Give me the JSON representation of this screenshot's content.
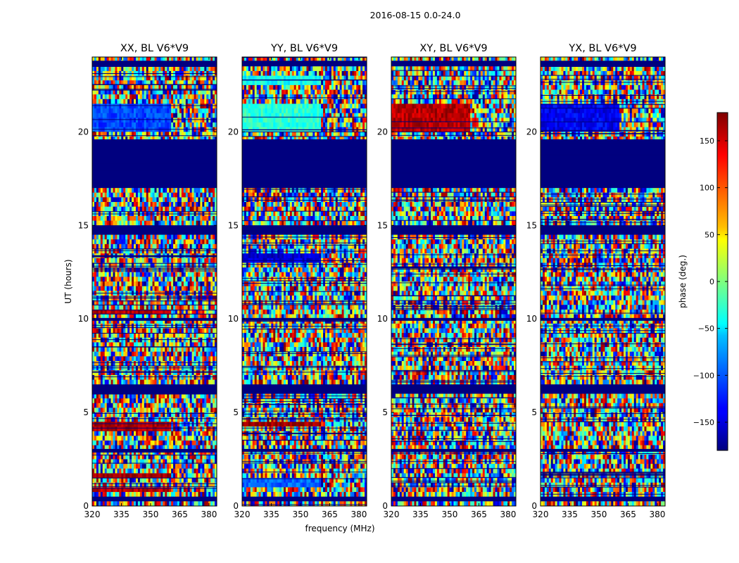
{
  "figure": {
    "suptitle": "2016-08-15 0.0-24.0",
    "xlabel": "frequency (MHz)",
    "ylabel": "UT (hours)"
  },
  "chart_data": {
    "type": "heatmap",
    "colormap": "jet",
    "x": {
      "label": "frequency (MHz)",
      "range": [
        320,
        384
      ],
      "ticks": [
        320,
        335,
        350,
        365,
        380
      ],
      "tick_labels": [
        "320",
        "335",
        "350",
        "365",
        "380"
      ]
    },
    "y": {
      "label": "UT (hours)",
      "range": [
        0,
        24
      ],
      "ticks": [
        0,
        5,
        10,
        15,
        20
      ],
      "tick_labels": [
        "0",
        "5",
        "10",
        "15",
        "20"
      ]
    },
    "panels": [
      {
        "title": "XX, BL V6*V9",
        "stable_phase": [
          {
            "t": [
              20.0,
              21.5
            ],
            "phase": -110
          },
          {
            "t": [
              14.9,
              15.1
            ],
            "phase": 170
          },
          {
            "t": [
              10.2,
              10.5
            ],
            "phase": 160
          },
          {
            "t": [
              4.1,
              4.4
            ],
            "phase": 165
          },
          {
            "t": [
              1.5,
              1.8
            ],
            "phase": 170
          },
          {
            "t": [
              0.7,
              1.0
            ],
            "phase": 160
          }
        ]
      },
      {
        "title": "YY, BL V6*V9",
        "stable_phase": [
          {
            "t": [
              20.0,
              21.5
            ],
            "phase": -30
          },
          {
            "t": [
              22.5,
              22.9
            ],
            "phase": -40
          },
          {
            "t": [
              13.1,
              13.4
            ],
            "phase": -150
          },
          {
            "t": [
              4.2,
              4.5
            ],
            "phase": 170
          },
          {
            "t": [
              1.0,
              1.5
            ],
            "phase": -100
          }
        ]
      },
      {
        "title": "XY, BL V6*V9",
        "stable_phase": [
          {
            "t": [
              20.0,
              21.5
            ],
            "phase": 160
          }
        ]
      },
      {
        "title": "YX, BL V6*V9",
        "stable_phase": [
          {
            "t": [
              20.0,
              21.5
            ],
            "phase": -140
          }
        ]
      }
    ],
    "blank_bands_hours": [
      [
        17.0,
        19.6
      ],
      [
        14.5,
        15.0
      ],
      [
        9.9,
        10.05
      ],
      [
        6.0,
        6.4
      ],
      [
        2.9,
        3.05
      ],
      [
        0.3,
        0.4
      ],
      [
        23.6,
        23.8
      ]
    ],
    "colorbar": {
      "label": "phase (deg.)",
      "range": [
        -180,
        180
      ],
      "ticks": [
        150,
        100,
        50,
        0,
        -50,
        -100,
        -150
      ],
      "tick_labels": [
        "150",
        "100",
        "50",
        "0",
        "−50",
        "−100",
        "−150"
      ]
    }
  }
}
